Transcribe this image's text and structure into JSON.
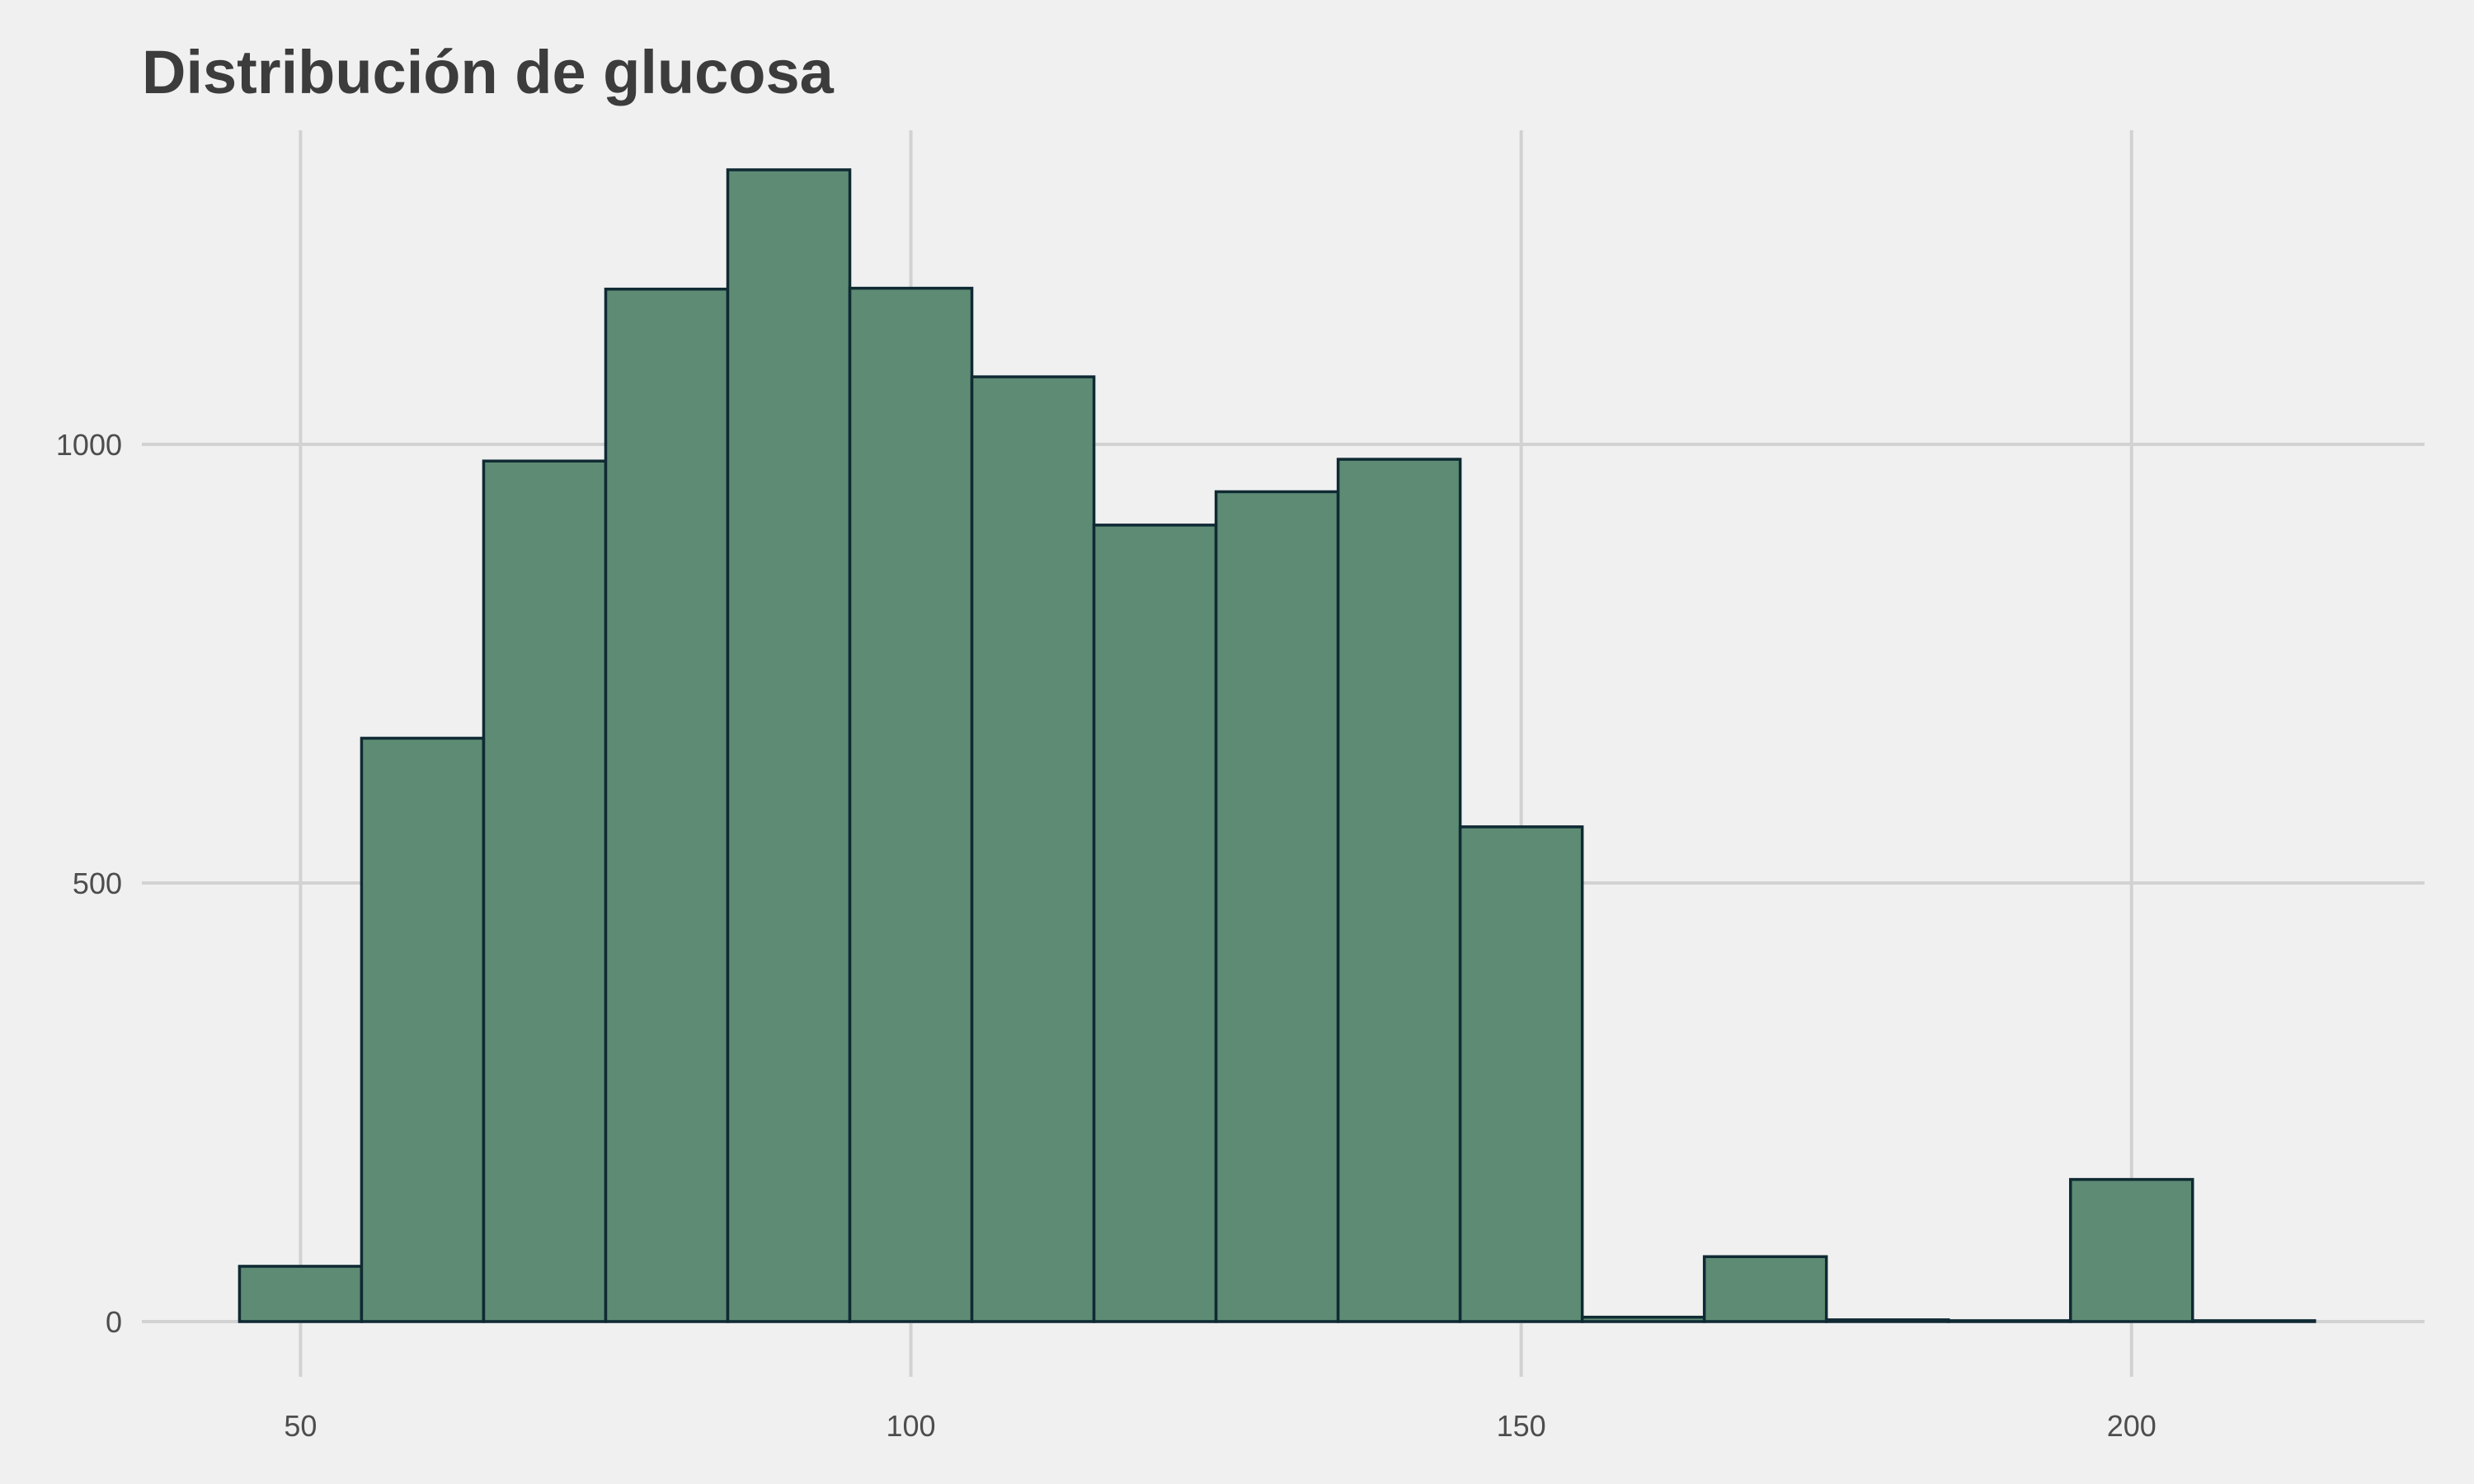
{
  "chart_data": {
    "type": "histogram",
    "title": "Distribución de glucosa",
    "xlabel": "",
    "ylabel": "",
    "bin_width": 10,
    "bins": [
      {
        "x0": 45,
        "x1": 55,
        "count": 63
      },
      {
        "x0": 55,
        "x1": 65,
        "count": 665
      },
      {
        "x0": 65,
        "x1": 75,
        "count": 981
      },
      {
        "x0": 75,
        "x1": 85,
        "count": 1177
      },
      {
        "x0": 85,
        "x1": 95,
        "count": 1313
      },
      {
        "x0": 95,
        "x1": 105,
        "count": 1178
      },
      {
        "x0": 105,
        "x1": 115,
        "count": 1077
      },
      {
        "x0": 115,
        "x1": 125,
        "count": 908
      },
      {
        "x0": 125,
        "x1": 135,
        "count": 946
      },
      {
        "x0": 135,
        "x1": 145,
        "count": 983
      },
      {
        "x0": 145,
        "x1": 155,
        "count": 564
      },
      {
        "x0": 155,
        "x1": 165,
        "count": 5
      },
      {
        "x0": 165,
        "x1": 175,
        "count": 74
      },
      {
        "x0": 175,
        "x1": 185,
        "count": 2
      },
      {
        "x0": 185,
        "x1": 195,
        "count": 1
      },
      {
        "x0": 195,
        "x1": 205,
        "count": 162
      },
      {
        "x0": 205,
        "x1": 215,
        "count": 1
      }
    ],
    "x_ticks": [
      50,
      100,
      150,
      200
    ],
    "y_ticks": [
      0,
      500,
      1000
    ],
    "xlim": [
      37,
      224
    ],
    "ylim": [
      -63,
      1375
    ],
    "grid": true,
    "legend": "none",
    "colors": {
      "bar_fill": "#5e8b74",
      "bar_stroke": "#0f2a33",
      "background": "#f0f0f0",
      "grid": "#d2d2d2"
    }
  }
}
